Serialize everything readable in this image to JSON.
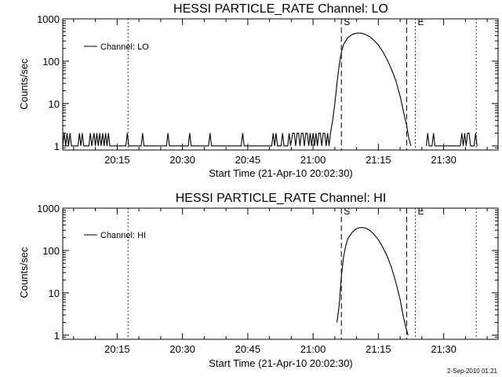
{
  "chart_data": [
    {
      "type": "line",
      "title": "HESSI PARTICLE_RATE Channel: LO",
      "xlabel": "Start Time (21-Apr-10 20:02:30)",
      "ylabel": "Counts/sec",
      "xlim": [
        "20:02:30",
        "21:42:30"
      ],
      "ylim": [
        0.8,
        1000
      ],
      "y_scale": "log",
      "x_ticks": [
        "20:15",
        "20:30",
        "20:45",
        "21:00",
        "21:15",
        "21:30"
      ],
      "y_ticks": [
        "1",
        "10",
        "100",
        "1000"
      ],
      "legend": {
        "entries": [
          "Channel: LO"
        ],
        "position": "top-left"
      },
      "grid": false,
      "markers": [
        {
          "label": "",
          "time": "20:17:30",
          "style": "dotted"
        },
        {
          "label": "S",
          "time": "21:06:30",
          "style": "dashed"
        },
        {
          "label": "",
          "time": "21:21:30",
          "style": "dashed"
        },
        {
          "label": "E",
          "time": "21:23:30",
          "style": "dotted"
        },
        {
          "label": "",
          "time": "21:37:30",
          "style": "dotted"
        }
      ],
      "series": [
        {
          "name": "Channel: LO",
          "segments": [
            [
              [
                "20:02:30",
                1
              ],
              [
                "20:02:50",
                2
              ],
              [
                "20:03:10",
                1
              ],
              [
                "20:03:30",
                2
              ],
              [
                "20:03:50",
                1
              ],
              [
                "20:04:10",
                2
              ],
              [
                "20:04:30",
                1
              ],
              [
                "20:06:00",
                1
              ],
              [
                "20:06:20",
                2
              ],
              [
                "20:06:40",
                1
              ],
              [
                "20:07:00",
                2
              ],
              [
                "20:07:20",
                1
              ],
              [
                "20:08:30",
                1
              ],
              [
                "20:08:50",
                2
              ],
              [
                "20:09:10",
                1
              ],
              [
                "20:09:40",
                2
              ],
              [
                "20:10:00",
                1
              ],
              [
                "20:10:20",
                2
              ],
              [
                "20:10:40",
                1
              ],
              [
                "20:11:00",
                2
              ],
              [
                "20:11:20",
                1
              ],
              [
                "20:11:40",
                2
              ],
              [
                "20:12:00",
                1
              ],
              [
                "20:12:20",
                2
              ],
              [
                "20:12:40",
                1
              ],
              [
                "20:13:00",
                2
              ],
              [
                "20:13:20",
                1
              ],
              [
                "20:17:00",
                1
              ],
              [
                "20:17:20",
                2
              ],
              [
                "20:17:40",
                1
              ],
              [
                "20:20:30",
                1
              ],
              [
                "20:20:50",
                2
              ],
              [
                "20:21:10",
                1
              ],
              [
                "20:26:20",
                1
              ],
              [
                "20:26:40",
                2
              ],
              [
                "20:27:00",
                1
              ],
              [
                "20:31:20",
                1
              ],
              [
                "20:31:40",
                2
              ],
              [
                "20:32:00",
                1
              ],
              [
                "20:36:00",
                1
              ],
              [
                "20:36:20",
                2
              ],
              [
                "20:36:40",
                1
              ],
              [
                "20:43:30",
                1
              ],
              [
                "20:43:50",
                2
              ],
              [
                "20:44:10",
                1
              ],
              [
                "20:50:30",
                1
              ],
              [
                "20:50:50",
                2
              ],
              [
                "20:51:10",
                1
              ],
              [
                "20:51:30",
                2
              ],
              [
                "20:51:50",
                1
              ],
              [
                "20:52:40",
                1
              ],
              [
                "20:53:00",
                2
              ],
              [
                "20:53:20",
                1
              ],
              [
                "20:54:10",
                1
              ],
              [
                "20:54:30",
                2
              ],
              [
                "20:54:50",
                1
              ],
              [
                "20:55:20",
                2
              ],
              [
                "20:55:40",
                2
              ],
              [
                "20:56:00",
                1
              ],
              [
                "20:56:20",
                2
              ],
              [
                "20:56:40",
                2
              ],
              [
                "20:57:00",
                1
              ],
              [
                "20:57:20",
                2
              ],
              [
                "20:57:40",
                2
              ],
              [
                "20:58:00",
                1
              ],
              [
                "20:58:20",
                2
              ],
              [
                "20:58:40",
                2
              ],
              [
                "20:59:00",
                1
              ],
              [
                "20:59:20",
                2
              ],
              [
                "20:59:40",
                1
              ],
              [
                "21:00:00",
                2
              ],
              [
                "21:00:20",
                1
              ],
              [
                "21:00:40",
                2
              ],
              [
                "21:01:00",
                1
              ],
              [
                "21:01:20",
                2
              ],
              [
                "21:01:40",
                2
              ],
              [
                "21:02:00",
                1
              ],
              [
                "21:02:20",
                2
              ],
              [
                "21:02:40",
                2
              ],
              [
                "21:03:00",
                1
              ],
              [
                "21:03:20",
                2
              ],
              [
                "21:03:40",
                1
              ],
              [
                "21:04:00",
                2
              ],
              [
                "21:04:30",
                4
              ],
              [
                "21:05:00",
                10
              ],
              [
                "21:05:30",
                30
              ],
              [
                "21:06:00",
                80
              ],
              [
                "21:06:30",
                160
              ],
              [
                "21:07:00",
                250
              ],
              [
                "21:08:00",
                360
              ],
              [
                "21:09:00",
                430
              ],
              [
                "21:10:00",
                460
              ],
              [
                "21:11:00",
                460
              ],
              [
                "21:12:00",
                430
              ],
              [
                "21:13:00",
                380
              ],
              [
                "21:14:00",
                310
              ],
              [
                "21:15:00",
                240
              ],
              [
                "21:16:00",
                170
              ],
              [
                "21:17:00",
                110
              ],
              [
                "21:18:00",
                65
              ],
              [
                "21:19:00",
                35
              ],
              [
                "21:20:00",
                15
              ],
              [
                "21:21:00",
                5
              ],
              [
                "21:21:30",
                3
              ],
              [
                "21:22:00",
                1.5
              ],
              [
                "21:22:30",
                1
              ]
            ],
            [
              [
                "21:26:00",
                1
              ],
              [
                "21:26:20",
                2
              ],
              [
                "21:26:40",
                1
              ],
              [
                "21:27:20",
                1
              ],
              [
                "21:27:40",
                2
              ],
              [
                "21:28:00",
                1
              ],
              [
                "21:33:50",
                1
              ],
              [
                "21:34:10",
                2
              ],
              [
                "21:34:30",
                1
              ],
              [
                "21:34:50",
                2
              ],
              [
                "21:35:10",
                1
              ],
              [
                "21:35:30",
                2
              ],
              [
                "21:35:50",
                2
              ],
              [
                "21:36:10",
                1
              ],
              [
                "21:37:00",
                1
              ],
              [
                "21:37:20",
                2
              ],
              [
                "21:37:40",
                1
              ]
            ]
          ]
        }
      ]
    },
    {
      "type": "line",
      "title": "HESSI PARTICLE_RATE Channel: HI",
      "xlabel": "Start Time (21-Apr-10 20:02:30)",
      "ylabel": "Counts/sec",
      "xlim": [
        "20:02:30",
        "21:42:30"
      ],
      "ylim": [
        0.8,
        1000
      ],
      "y_scale": "log",
      "x_ticks": [
        "20:15",
        "20:30",
        "20:45",
        "21:00",
        "21:15",
        "21:30"
      ],
      "y_ticks": [
        "1",
        "10",
        "100",
        "1000"
      ],
      "legend": {
        "entries": [
          "Channel: HI"
        ],
        "position": "top-left"
      },
      "grid": false,
      "markers": [
        {
          "label": "",
          "time": "20:17:30",
          "style": "dotted"
        },
        {
          "label": "S",
          "time": "21:06:30",
          "style": "dashed"
        },
        {
          "label": "",
          "time": "21:21:30",
          "style": "dashed"
        },
        {
          "label": "E",
          "time": "21:23:30",
          "style": "dotted"
        },
        {
          "label": "",
          "time": "21:37:30",
          "style": "dotted"
        }
      ],
      "series": [
        {
          "name": "Channel: HI",
          "segments": [
            [
              [
                "21:05:30",
                2
              ],
              [
                "21:06:00",
                5
              ],
              [
                "21:06:30",
                25
              ],
              [
                "21:07:00",
                70
              ],
              [
                "21:07:30",
                130
              ],
              [
                "21:08:00",
                190
              ],
              [
                "21:09:00",
                270
              ],
              [
                "21:10:00",
                330
              ],
              [
                "21:11:00",
                350
              ],
              [
                "21:12:00",
                340
              ],
              [
                "21:13:00",
                300
              ],
              [
                "21:14:00",
                240
              ],
              [
                "21:15:00",
                180
              ],
              [
                "21:16:00",
                120
              ],
              [
                "21:17:00",
                75
              ],
              [
                "21:18:00",
                40
              ],
              [
                "21:19:00",
                18
              ],
              [
                "21:20:00",
                7
              ],
              [
                "21:20:40",
                3
              ],
              [
                "21:21:20",
                1.5
              ],
              [
                "21:21:50",
                1
              ]
            ]
          ]
        }
      ]
    }
  ],
  "footer": {
    "timestamp": "2-Sep-2010 01:21"
  }
}
